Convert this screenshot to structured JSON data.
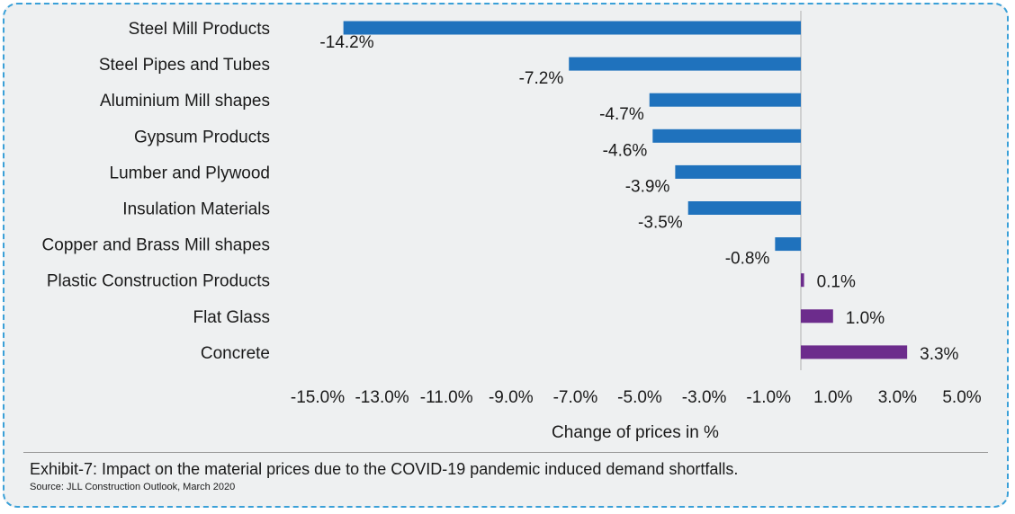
{
  "caption": "Exhibit-7: Impact on the material prices due to the COVID-19 pandemic induced demand shortfalls.",
  "source": "Source: JLL Construction Outlook, March 2020",
  "colors": {
    "negative": "#1f72bd",
    "positive": "#6c2c8c"
  },
  "chart_data": {
    "type": "bar",
    "orientation": "horizontal",
    "categories": [
      "Steel Mill Products",
      "Steel Pipes and Tubes",
      "Aluminium Mill shapes",
      "Gypsum Products",
      "Lumber and Plywood",
      "Insulation Materials",
      "Copper and Brass Mill shapes",
      "Plastic Construction Products",
      "Flat Glass",
      "Concrete"
    ],
    "values": [
      -14.2,
      -7.2,
      -4.7,
      -4.6,
      -3.9,
      -3.5,
      -0.8,
      0.1,
      1.0,
      3.3
    ],
    "value_labels": [
      "-14.2%",
      "-7.2%",
      "-4.7%",
      "-4.6%",
      "-3.9%",
      "-3.5%",
      "-0.8%",
      "0.1%",
      "1.0%",
      "3.3%"
    ],
    "xlabel": "Change of prices in %",
    "xlim": [
      -15.0,
      5.0
    ],
    "x_ticks": [
      -15.0,
      -13.0,
      -11.0,
      -9.0,
      -7.0,
      -5.0,
      -3.0,
      -1.0,
      1.0,
      3.0,
      5.0
    ],
    "x_tick_labels": [
      "-15.0%",
      "-13.0%",
      "-11.0%",
      "-9.0%",
      "-7.0%",
      "-5.0%",
      "-3.0%",
      "-1.0%",
      "1.0%",
      "3.0%",
      "5.0%"
    ],
    "grid": false,
    "legend": "none"
  }
}
